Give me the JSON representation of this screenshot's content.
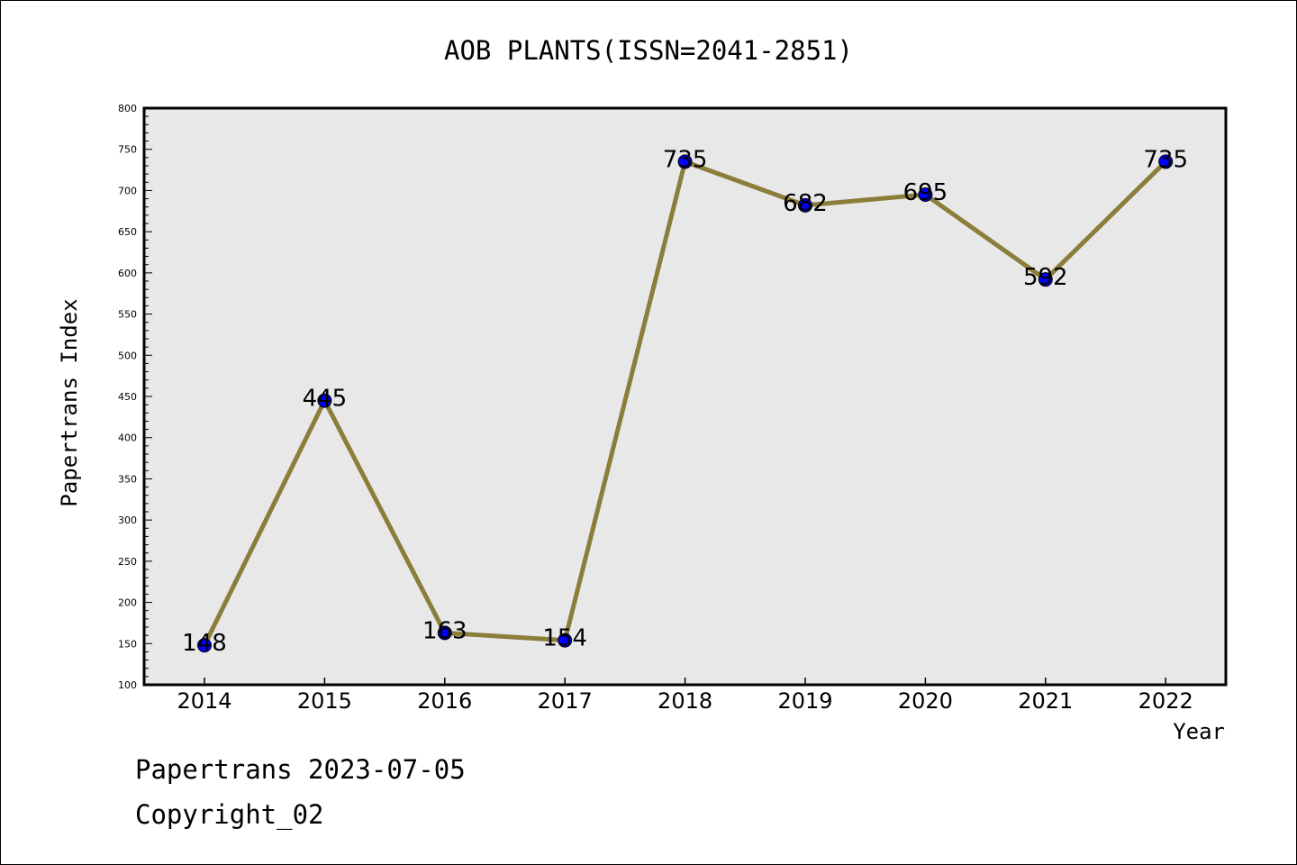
{
  "chart_data": {
    "type": "line",
    "title": "AOB PLANTS(ISSN=2041-2851)",
    "xlabel": "Year",
    "ylabel": "Papertrans Index",
    "categories": [
      "2014",
      "2015",
      "2016",
      "2017",
      "2018",
      "2019",
      "2020",
      "2021",
      "2022"
    ],
    "values": [
      148,
      445,
      163,
      154,
      735,
      682,
      695,
      592,
      735
    ],
    "data_labels": [
      "148",
      "445",
      "163",
      "154",
      "735",
      "682",
      "695",
      "592",
      "735"
    ],
    "ylim": [
      100,
      800
    ],
    "yticks": [
      "100",
      "150",
      "200",
      "250",
      "300",
      "350",
      "400",
      "450",
      "500",
      "550",
      "600",
      "650",
      "700",
      "750",
      "800"
    ],
    "grid": false,
    "colors": {
      "plot_background": "#e8e8e8",
      "line": "#8b7d3a",
      "marker": "#0000ff"
    }
  },
  "footer": {
    "line1": "Papertrans 2023-07-05",
    "line2": "Copyright_02"
  }
}
